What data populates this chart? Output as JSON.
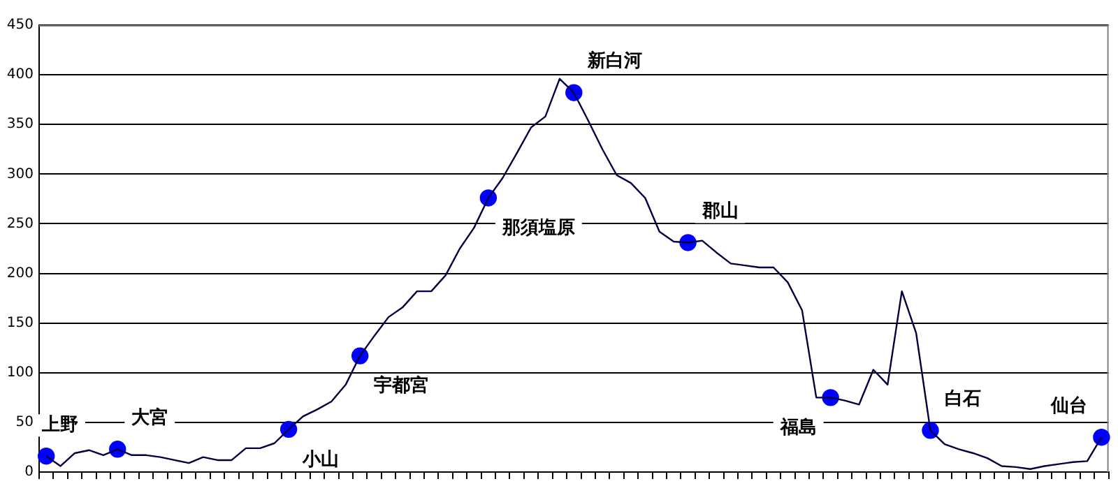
{
  "chart_data": {
    "type": "line",
    "categories": [
      null,
      null,
      null,
      null,
      null,
      null,
      null,
      null,
      null,
      null,
      null,
      null,
      null,
      null,
      null,
      null,
      null,
      null,
      null,
      null,
      null,
      null,
      null,
      null,
      null,
      null,
      null,
      null,
      null,
      null,
      null,
      null,
      null,
      null,
      null,
      null,
      null,
      null,
      null,
      null,
      null,
      null,
      null,
      null,
      null,
      null,
      null,
      null,
      null,
      null,
      null,
      null,
      null,
      null,
      null,
      null,
      null,
      null,
      null,
      null,
      null,
      null,
      null,
      null,
      null,
      null,
      null,
      null,
      null,
      null,
      null,
      null,
      null,
      null,
      null
    ],
    "series": [
      {
        "color": "#000040",
        "marker": "none",
        "values": [
          16,
          6,
          19,
          22,
          17,
          23,
          17,
          17,
          15,
          12,
          9,
          15,
          12,
          12,
          24,
          24,
          29,
          43,
          56,
          63,
          71,
          88,
          117,
          137,
          156,
          166,
          182,
          182,
          198,
          225,
          246,
          276,
          296,
          321,
          347,
          358,
          396,
          382,
          354,
          325,
          299,
          291,
          276,
          242,
          232,
          231,
          233,
          221,
          210,
          208,
          206,
          206,
          191,
          163,
          75,
          75,
          72,
          68,
          103,
          88,
          182,
          140,
          42,
          28,
          23,
          19,
          14,
          6,
          5,
          3,
          6,
          8,
          10,
          11,
          35
        ]
      },
      {
        "type": "scatter",
        "color": "#0000ff",
        "marker": "circle",
        "values": [
          16,
          null,
          null,
          null,
          null,
          23,
          null,
          null,
          null,
          null,
          null,
          null,
          null,
          null,
          null,
          null,
          null,
          43,
          null,
          null,
          null,
          null,
          117,
          null,
          null,
          null,
          null,
          null,
          null,
          null,
          null,
          276,
          null,
          null,
          null,
          null,
          null,
          382,
          null,
          null,
          null,
          null,
          null,
          null,
          null,
          231,
          null,
          null,
          null,
          null,
          null,
          null,
          null,
          null,
          null,
          75,
          null,
          null,
          null,
          null,
          null,
          null,
          42,
          null,
          null,
          null,
          null,
          null,
          null,
          null,
          null,
          null,
          null,
          null,
          35
        ],
        "value_labels": [
          "上野",
          null,
          null,
          null,
          null,
          "大宮",
          null,
          null,
          null,
          null,
          null,
          null,
          null,
          null,
          null,
          null,
          null,
          "小山",
          null,
          null,
          null,
          null,
          "宇都宮",
          null,
          null,
          null,
          null,
          null,
          null,
          null,
          null,
          "那須塩原",
          null,
          null,
          null,
          null,
          null,
          "新白河",
          null,
          null,
          null,
          null,
          null,
          null,
          null,
          "郡山",
          null,
          null,
          null,
          null,
          null,
          null,
          null,
          null,
          null,
          "福島",
          null,
          null,
          null,
          null,
          null,
          null,
          "白石",
          null,
          null,
          null,
          null,
          null,
          null,
          null,
          null,
          null,
          null,
          null,
          "仙台"
        ]
      }
    ],
    "ylim": [
      0,
      450
    ],
    "yticks": [
      0,
      50,
      100,
      150,
      200,
      250,
      300,
      350,
      400,
      450
    ],
    "grid": "y",
    "legend": false
  }
}
